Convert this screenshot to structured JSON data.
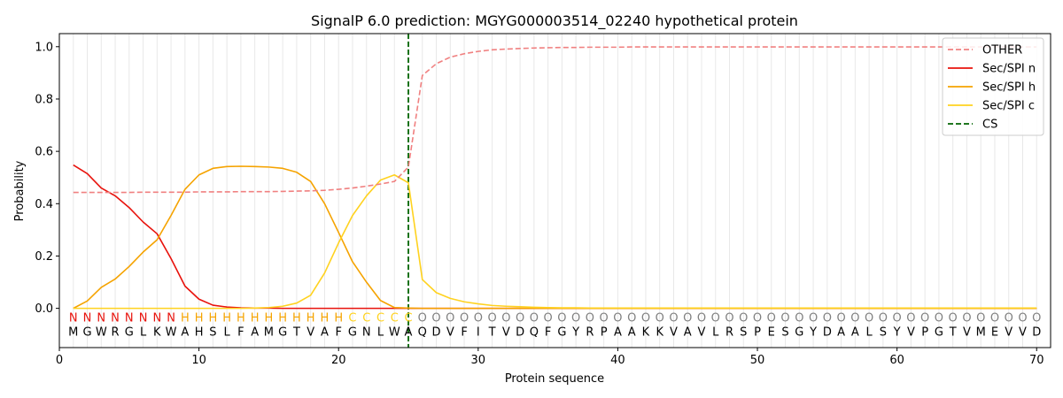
{
  "chart_data": {
    "type": "line",
    "title": "SignalP 6.0 prediction: MGYG000003514_02240 hypothetical protein",
    "xlabel": "Protein sequence",
    "ylabel": "Probability",
    "xlim": [
      0,
      71
    ],
    "ylim": [
      -0.15,
      1.05
    ],
    "xticks": [
      0,
      10,
      20,
      30,
      40,
      50,
      60,
      70
    ],
    "yticks": [
      0.0,
      0.2,
      0.4,
      0.6,
      0.8,
      1.0
    ],
    "xtick_labels": [
      "0",
      "10",
      "20",
      "30",
      "40",
      "50",
      "60",
      "70"
    ],
    "ytick_labels": [
      "0.0",
      "0.2",
      "0.4",
      "0.6",
      "0.8",
      "1.0"
    ],
    "grid": "vertical lines at each residue",
    "legend_position": "top-right",
    "x": [
      1,
      2,
      3,
      4,
      5,
      6,
      7,
      8,
      9,
      10,
      11,
      12,
      13,
      14,
      15,
      16,
      17,
      18,
      19,
      20,
      21,
      22,
      23,
      24,
      25,
      26,
      27,
      28,
      29,
      30,
      31,
      32,
      33,
      34,
      35,
      36,
      37,
      38,
      39,
      40,
      41,
      42,
      43,
      44,
      45,
      46,
      47,
      48,
      49,
      50,
      51,
      52,
      53,
      54,
      55,
      56,
      57,
      58,
      59,
      60,
      61,
      62,
      63,
      64,
      65,
      66,
      67,
      68,
      69,
      70
    ],
    "sequence": [
      "M",
      "G",
      "W",
      "R",
      "G",
      "L",
      "K",
      "W",
      "A",
      "H",
      "S",
      "L",
      "F",
      "A",
      "M",
      "G",
      "T",
      "V",
      "A",
      "F",
      "G",
      "N",
      "L",
      "W",
      "A",
      "Q",
      "D",
      "V",
      "F",
      "I",
      "T",
      "V",
      "D",
      "Q",
      "F",
      "G",
      "Y",
      "R",
      "P",
      "A",
      "A",
      "K",
      "K",
      "V",
      "A",
      "V",
      "L",
      "R",
      "S",
      "P",
      "E",
      "S",
      "G",
      "Y",
      "D",
      "A",
      "A",
      "L",
      "S",
      "Y",
      "V",
      "P",
      "G",
      "T",
      "V",
      "M",
      "E",
      "V",
      "V",
      "D"
    ],
    "annotation": [
      "N",
      "N",
      "N",
      "N",
      "N",
      "N",
      "N",
      "N",
      "H",
      "H",
      "H",
      "H",
      "H",
      "H",
      "H",
      "H",
      "H",
      "H",
      "H",
      "H",
      "C",
      "C",
      "C",
      "C",
      "C",
      "O",
      "O",
      "O",
      "O",
      "O",
      "O",
      "O",
      "O",
      "O",
      "O",
      "O",
      "O",
      "O",
      "O",
      "O",
      "O",
      "O",
      "O",
      "O",
      "O",
      "O",
      "O",
      "O",
      "O",
      "O",
      "O",
      "O",
      "O",
      "O",
      "O",
      "O",
      "O",
      "O",
      "O",
      "O",
      "O",
      "O",
      "O",
      "O",
      "O",
      "O",
      "O",
      "O",
      "O",
      "O"
    ],
    "annotation_colors": {
      "N": "#e8120c",
      "H": "#f5a300",
      "C": "#ffd21f",
      "O": "#808080"
    },
    "series": [
      {
        "name": "OTHER",
        "color": "#f08080",
        "dash": "dashed",
        "values": [
          0.443,
          0.443,
          0.443,
          0.443,
          0.443,
          0.444,
          0.444,
          0.444,
          0.444,
          0.445,
          0.445,
          0.445,
          0.446,
          0.446,
          0.446,
          0.447,
          0.448,
          0.449,
          0.451,
          0.455,
          0.46,
          0.467,
          0.475,
          0.485,
          0.54,
          0.89,
          0.935,
          0.96,
          0.973,
          0.982,
          0.988,
          0.991,
          0.993,
          0.995,
          0.996,
          0.997,
          0.997,
          0.998,
          0.998,
          0.998,
          0.999,
          0.999,
          0.999,
          0.999,
          0.999,
          0.999,
          0.999,
          0.999,
          0.999,
          0.999,
          0.999,
          0.999,
          0.999,
          0.999,
          0.999,
          0.999,
          0.999,
          0.999,
          0.999,
          0.999,
          0.999,
          0.999,
          0.999,
          0.999,
          0.999,
          0.999,
          0.999,
          0.999,
          0.999,
          0.999
        ]
      },
      {
        "name": "Sec/SPI n",
        "color": "#e8120c",
        "dash": "solid",
        "values": [
          0.548,
          0.515,
          0.46,
          0.43,
          0.385,
          0.33,
          0.285,
          0.19,
          0.085,
          0.035,
          0.012,
          0.005,
          0.002,
          0.001,
          0.001,
          0,
          0,
          0,
          0,
          0,
          0,
          0,
          0,
          0,
          0,
          0,
          0,
          0,
          0,
          0,
          0,
          0,
          0,
          0,
          0,
          0,
          0,
          0,
          0,
          0,
          0,
          0,
          0,
          0,
          0,
          0,
          0,
          0,
          0,
          0,
          0,
          0,
          0,
          0,
          0,
          0,
          0,
          0,
          0,
          0,
          0,
          0,
          0,
          0,
          0,
          0,
          0,
          0,
          0,
          0
        ]
      },
      {
        "name": "Sec/SPI h",
        "color": "#f5a300",
        "dash": "solid",
        "values": [
          0.0,
          0.028,
          0.08,
          0.112,
          0.16,
          0.215,
          0.262,
          0.355,
          0.455,
          0.51,
          0.535,
          0.542,
          0.543,
          0.542,
          0.54,
          0.535,
          0.52,
          0.485,
          0.4,
          0.29,
          0.178,
          0.1,
          0.03,
          0.003,
          0.001,
          0,
          0,
          0,
          0,
          0,
          0,
          0,
          0,
          0,
          0,
          0,
          0,
          0,
          0,
          0,
          0,
          0,
          0,
          0,
          0,
          0,
          0,
          0,
          0,
          0,
          0,
          0,
          0,
          0,
          0,
          0,
          0,
          0,
          0,
          0,
          0,
          0,
          0,
          0,
          0,
          0,
          0,
          0,
          0,
          0
        ]
      },
      {
        "name": "Sec/SPI c",
        "color": "#ffd21f",
        "dash": "solid",
        "values": [
          0,
          0,
          0,
          0,
          0,
          0,
          0,
          0,
          0,
          0,
          0,
          0,
          0,
          0.001,
          0.003,
          0.008,
          0.02,
          0.05,
          0.135,
          0.25,
          0.355,
          0.43,
          0.49,
          0.51,
          0.48,
          0.11,
          0.06,
          0.038,
          0.025,
          0.017,
          0.011,
          0.008,
          0.006,
          0.004,
          0.003,
          0.002,
          0.002,
          0.001,
          0.001,
          0.001,
          0.001,
          0.001,
          0.001,
          0.001,
          0.001,
          0.001,
          0.001,
          0.001,
          0.001,
          0.001,
          0.001,
          0.001,
          0.001,
          0.001,
          0.001,
          0.001,
          0.001,
          0.001,
          0.001,
          0.001,
          0.001,
          0.001,
          0.001,
          0.001,
          0.001,
          0.001,
          0.001,
          0.001,
          0.001,
          0.001
        ]
      }
    ],
    "cs": {
      "name": "CS",
      "x": 25,
      "color": "#006400",
      "dash": "dashed"
    }
  }
}
